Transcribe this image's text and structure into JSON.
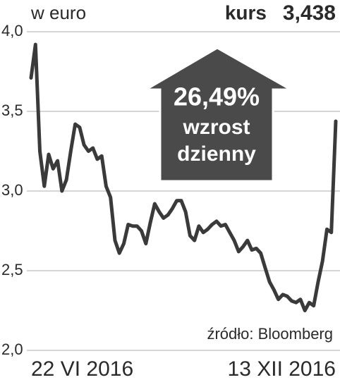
{
  "chart_data": {
    "type": "line",
    "subtitle": "w euro",
    "price_label": "kurs",
    "price": "3,438",
    "annotations": [
      "26,49%",
      "wzrost",
      "dzienny"
    ],
    "source": "źródło: Bloomberg",
    "categories": [
      "22 VI 2016",
      null,
      null,
      null,
      null,
      null,
      null,
      null,
      null,
      null,
      null,
      null,
      null,
      null,
      null,
      null,
      null,
      null,
      null,
      null,
      null,
      null,
      null,
      null,
      null,
      null,
      null,
      null,
      null,
      null,
      null,
      null,
      null,
      null,
      null,
      null,
      null,
      null,
      null,
      null,
      null,
      null,
      null,
      null,
      null,
      null,
      null,
      null,
      null,
      null,
      null,
      null,
      null,
      null,
      null,
      null,
      null,
      null,
      null,
      null,
      null,
      null,
      null,
      null,
      null,
      null,
      null,
      null,
      null,
      "13 XII 2016"
    ],
    "values": [
      3.71,
      3.92,
      3.25,
      3.03,
      3.23,
      3.14,
      3.19,
      3.0,
      3.07,
      3.25,
      3.42,
      3.4,
      3.29,
      3.25,
      3.27,
      3.2,
      3.22,
      3.03,
      2.96,
      2.69,
      2.61,
      2.67,
      2.79,
      2.78,
      2.78,
      2.75,
      2.67,
      2.8,
      2.92,
      2.87,
      2.83,
      2.85,
      2.89,
      2.94,
      2.94,
      2.87,
      2.72,
      2.69,
      2.78,
      2.74,
      2.76,
      2.79,
      2.81,
      2.78,
      2.79,
      2.74,
      2.69,
      2.62,
      2.65,
      2.69,
      2.63,
      2.64,
      2.61,
      2.52,
      2.43,
      2.38,
      2.32,
      2.35,
      2.34,
      2.31,
      2.3,
      2.32,
      2.25,
      2.3,
      2.28,
      2.43,
      2.56,
      2.76,
      2.74,
      3.438
    ],
    "color": "#3a3a3a",
    "ylim": [
      2.0,
      4.0
    ],
    "yticks": [
      {
        "value": 2.0,
        "label": "2,0"
      },
      {
        "value": 2.5,
        "label": "2,5"
      },
      {
        "value": 3.0,
        "label": "3,0"
      },
      {
        "value": 3.5,
        "label": "3,5"
      },
      {
        "value": 4.0,
        "label": "4,0"
      }
    ],
    "grid": true
  }
}
